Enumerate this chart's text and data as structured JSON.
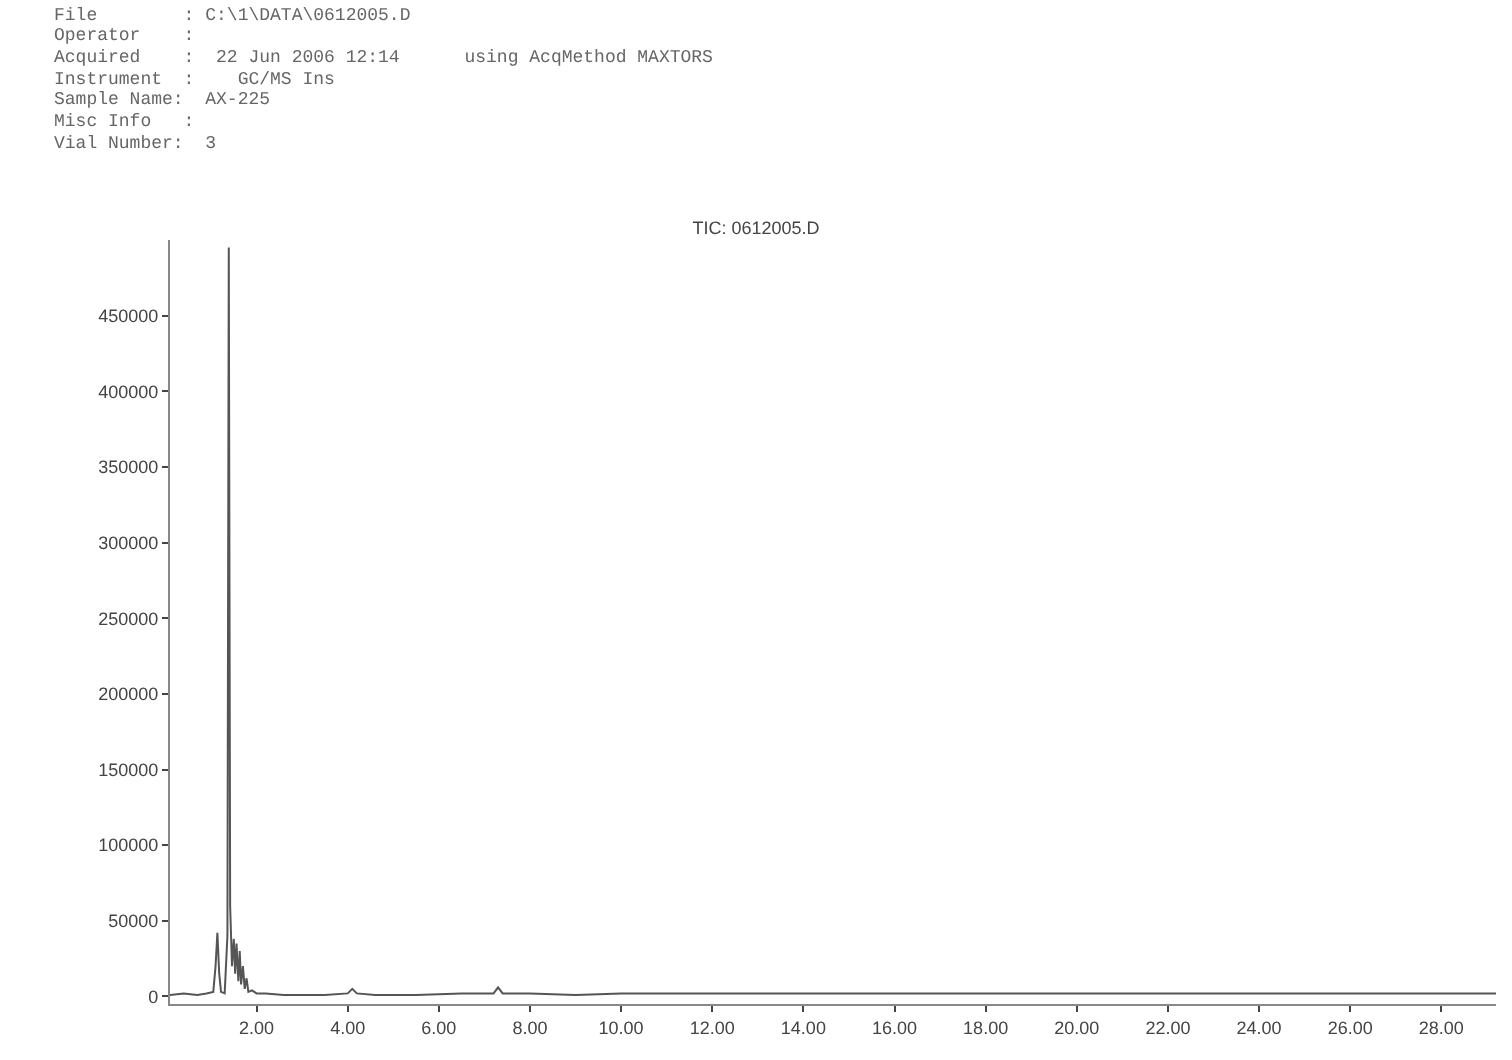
{
  "chart_data": {
    "type": "line",
    "title": "TIC: 0612005.D",
    "annotations": [
      "File        : C:\\1\\DATA\\0612005.D",
      "Operator    :",
      "Acquired    :  22 Jun 2006 12:14      using AcqMethod MAXTORS",
      "Instrument  :    GC/MS Ins",
      "Sample Name:  AX-225",
      "Misc Info   :",
      "Vial Number:  3"
    ],
    "series": [
      {
        "color": "#555555",
        "x": [
          0.1,
          0.4,
          0.7,
          0.9,
          1.05,
          1.1,
          1.14,
          1.18,
          1.22,
          1.3,
          1.36,
          1.39,
          1.42,
          1.46,
          1.5,
          1.53,
          1.56,
          1.6,
          1.63,
          1.66,
          1.7,
          1.74,
          1.78,
          1.82,
          1.9,
          2.0,
          2.2,
          2.6,
          3.0,
          3.5,
          4.0,
          4.1,
          4.2,
          4.6,
          5.5,
          6.5,
          7.2,
          7.3,
          7.4,
          8.0,
          9.0,
          10.0,
          12.0,
          14.0,
          16.0,
          18.0,
          20.0,
          22.0,
          24.0,
          26.0,
          28.0,
          29.2
        ],
        "values": [
          1000,
          2000,
          1000,
          2000,
          3000,
          20000,
          42000,
          15000,
          3000,
          2000,
          40000,
          495000,
          60000,
          20000,
          38000,
          15000,
          35000,
          10000,
          30000,
          8000,
          20000,
          5000,
          12000,
          3000,
          4000,
          2000,
          2000,
          1000,
          1000,
          1000,
          2000,
          5000,
          2000,
          1000,
          1000,
          2000,
          2000,
          6000,
          2000,
          2000,
          1000,
          2000,
          2000,
          2000,
          2000,
          2000,
          2000,
          2000,
          2000,
          2000,
          2000,
          2000
        ]
      }
    ],
    "xlim": [
      0.1,
      29.2
    ],
    "xticks": [
      {
        "value": 2,
        "label": "2.00"
      },
      {
        "value": 4,
        "label": "4.00"
      },
      {
        "value": 6,
        "label": "6.00"
      },
      {
        "value": 8,
        "label": "8.00"
      },
      {
        "value": 10,
        "label": "10.00"
      },
      {
        "value": 12,
        "label": "12.00"
      },
      {
        "value": 14,
        "label": "14.00"
      },
      {
        "value": 16,
        "label": "16.00"
      },
      {
        "value": 18,
        "label": "18.00"
      },
      {
        "value": 20,
        "label": "20.00"
      },
      {
        "value": 22,
        "label": "22.00"
      },
      {
        "value": 24,
        "label": "24.00"
      },
      {
        "value": 26,
        "label": "26.00"
      },
      {
        "value": 28,
        "label": "28.00"
      }
    ],
    "ylim": [
      -5000,
      500000
    ],
    "yticks": [
      0,
      50000,
      100000,
      150000,
      200000,
      250000,
      300000,
      350000,
      400000,
      450000
    ],
    "marker": "none",
    "line_style": "solid"
  }
}
